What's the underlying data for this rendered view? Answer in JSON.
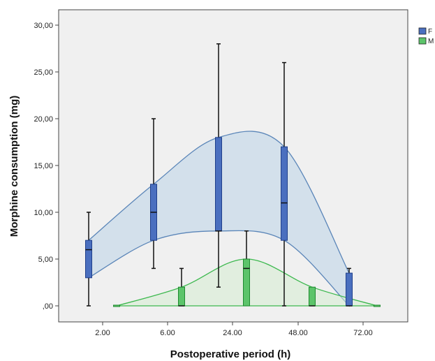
{
  "chart_data": {
    "type": "box",
    "xlabel": "Postoperative period (h)",
    "ylabel": "Morphine consumption (mg)",
    "ylim": [
      0,
      31
    ],
    "yticks": [
      0,
      5,
      10,
      15,
      20,
      25,
      30
    ],
    "ytick_labels": [
      ",00",
      "5,00",
      "10,00",
      "15,00",
      "20,00",
      "25,00",
      "30,00"
    ],
    "categories": [
      "2.00",
      "6.00",
      "24.00",
      "48.00",
      "72.00"
    ],
    "legend_position": "top-right",
    "series": [
      {
        "name": "F",
        "color": "#4a6fbf",
        "boxes": [
          {
            "category": "2.00",
            "min": 0,
            "q1": 3,
            "median": 6,
            "q3": 7,
            "max": 10
          },
          {
            "category": "6.00",
            "min": 4,
            "q1": 7,
            "median": 10,
            "q3": 13,
            "max": 20
          },
          {
            "category": "24.00",
            "min": 2,
            "q1": 8,
            "median": 8,
            "q3": 18,
            "max": 28
          },
          {
            "category": "48.00",
            "min": 0,
            "q1": 7,
            "median": 11,
            "q3": 17,
            "max": 26
          },
          {
            "category": "72.00",
            "min": 0,
            "q1": 0,
            "median": 0,
            "q3": 3.5,
            "max": 4
          }
        ]
      },
      {
        "name": "M",
        "color": "#5cc46a",
        "boxes": [
          {
            "category": "2.00",
            "min": 0,
            "q1": 0,
            "median": 0,
            "q3": 0,
            "max": 0
          },
          {
            "category": "6.00",
            "min": 0,
            "q1": 0,
            "median": 0,
            "q3": 2,
            "max": 4
          },
          {
            "category": "24.00",
            "min": 0,
            "q1": 0,
            "median": 4,
            "q3": 5,
            "max": 8
          },
          {
            "category": "48.00",
            "min": 0,
            "q1": 0,
            "median": 0,
            "q3": 2,
            "max": 2
          },
          {
            "category": "72.00",
            "min": 0,
            "q1": 0,
            "median": 0,
            "q3": 0,
            "max": 0
          }
        ]
      }
    ]
  }
}
